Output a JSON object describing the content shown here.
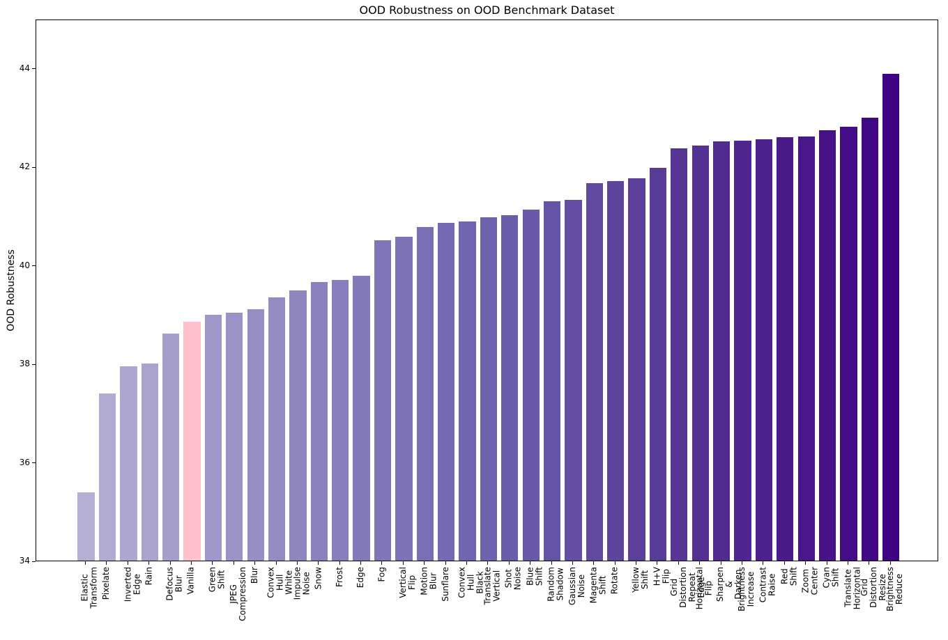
{
  "figure": {
    "title": "OOD Robustness on OOD Benchmark Dataset",
    "ylabel": "OOD Robustness"
  },
  "chart_data": {
    "type": "bar",
    "title": "OOD Robustness on OOD Benchmark Dataset",
    "xlabel": "",
    "ylabel": "OOD Robustness",
    "ylim": [
      34,
      45
    ],
    "yticks": [
      34,
      36,
      38,
      40,
      42,
      44
    ],
    "grid": false,
    "legend": null,
    "sort_order": "ascending",
    "highlighted_category": "Vanilla",
    "highlight_color": "#ffc0cb",
    "categories": [
      "Elastic Transform",
      "Pixelate",
      "Inverted Edge",
      "Rain",
      "Defocus Blur",
      "Vanilla",
      "Green Shift",
      "JPEG Compression",
      "Blur",
      "Convex Hull\nWhite",
      "Impulse Noise",
      "Snow",
      "Frost",
      "Edge",
      "Fog",
      "Vertical Flip",
      "Motion Blur",
      "Sunflare",
      "Convex Hull\nBlack",
      "Translate Vertical",
      "Shot Noise",
      "Blue Shift",
      "Random Shadow",
      "Gaussian Noise",
      "Magenta Shift",
      "Rotate",
      "Yellow Shift",
      "H+V Flip",
      "Grid Distortion\nRepeat Edge",
      "Horizontal Flip",
      "Sharpen & Darken",
      "Brightness Increase",
      "Contrast Raise",
      "Red Shift",
      "Zoom Center",
      "Cyan Shift",
      "Translate Horizontal",
      "Grid Distortion\nResize",
      "Brightness Reduce"
    ],
    "values": [
      35.38,
      37.4,
      37.94,
      38.0,
      38.61,
      38.85,
      38.99,
      39.04,
      39.1,
      39.35,
      39.49,
      39.66,
      39.7,
      39.78,
      40.5,
      40.57,
      40.77,
      40.86,
      40.88,
      40.97,
      41.01,
      41.13,
      41.3,
      41.32,
      41.66,
      41.7,
      41.76,
      41.98,
      42.37,
      42.42,
      42.51,
      42.52,
      42.56,
      42.6,
      42.61,
      42.74,
      42.81,
      42.99,
      43.89
    ],
    "bar_colors": [
      "#b5afd4",
      "#b1abd2",
      "#ada7d0",
      "#aaa3ce",
      "#a69fcc",
      "#ffc0cb",
      "#9e97c8",
      "#9b93c6",
      "#978fc4",
      "#938bc2",
      "#8f86bf",
      "#8b82bd",
      "#877ebb",
      "#837ab9",
      "#8076b7",
      "#7c72b5",
      "#786eb3",
      "#746ab1",
      "#7066af",
      "#6d62ad",
      "#6a5daa",
      "#6858a8",
      "#6553a5",
      "#634ea2",
      "#60499f",
      "#5e449d",
      "#5b3f9a",
      "#593a97",
      "#563594",
      "#543092",
      "#512b90",
      "#4f268f",
      "#4d218d",
      "#4a1c8b",
      "#48178a",
      "#451288",
      "#430d86",
      "#400885",
      "#3e0383"
    ]
  }
}
